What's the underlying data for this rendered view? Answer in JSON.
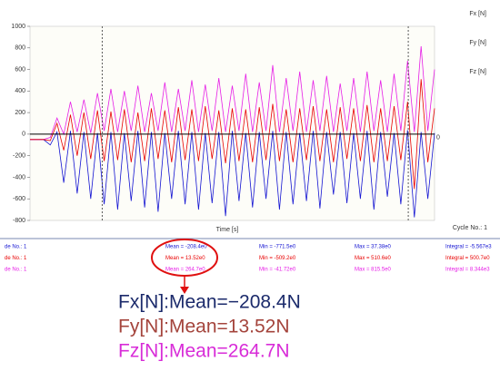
{
  "chart_data": {
    "type": "line",
    "x_label": "Time [s]",
    "x": [
      0,
      1,
      2,
      3,
      4,
      5,
      6,
      7,
      8,
      9,
      10,
      11,
      12,
      13,
      14,
      15,
      16,
      17,
      18,
      19,
      20,
      21,
      22,
      23,
      24,
      25,
      26,
      27,
      28,
      29,
      30,
      31,
      32,
      33,
      34,
      35,
      36,
      37,
      38,
      39,
      40,
      41,
      42,
      43,
      44,
      45,
      46,
      47,
      48,
      49,
      50,
      51,
      52,
      53,
      54,
      55,
      56,
      57,
      58,
      59,
      60
    ],
    "xlim": [
      0,
      60
    ],
    "ylim": [
      -800,
      1000
    ],
    "yticks": [
      1000,
      800,
      600,
      400,
      200,
      0,
      -200,
      -400,
      -600,
      -800
    ],
    "cursors": [
      10.7,
      56.1
    ],
    "annotations": [
      "0"
    ],
    "series": [
      {
        "name": "Fx [N]",
        "color": "#1414d2",
        "values": [
          -50,
          -50,
          -50,
          -100,
          20,
          -450,
          30,
          -550,
          20,
          -600,
          10,
          -650,
          20,
          -700,
          10,
          -620,
          30,
          -680,
          20,
          -720,
          10,
          -600,
          30,
          -650,
          20,
          -700,
          10,
          -640,
          20,
          -760,
          30,
          -620,
          10,
          -680,
          20,
          -600,
          30,
          -700,
          20,
          -650,
          10,
          -620,
          30,
          -690,
          20,
          -560,
          20,
          -640,
          10,
          -600,
          30,
          -700,
          20,
          -580,
          10,
          -650,
          37,
          -771,
          20,
          -600,
          10
        ]
      },
      {
        "name": "Fy [N]",
        "color": "#e80000",
        "values": [
          -50,
          -50,
          -50,
          -60,
          100,
          -150,
          180,
          -200,
          200,
          -230,
          220,
          -250,
          210,
          -240,
          230,
          -260,
          200,
          -250,
          240,
          -230,
          220,
          -260,
          250,
          -240,
          230,
          -250,
          260,
          -230,
          220,
          -270,
          240,
          -250,
          230,
          -260,
          250,
          -240,
          280,
          -250,
          230,
          -260,
          240,
          -240,
          260,
          -250,
          230,
          -260,
          250,
          -230,
          240,
          -250,
          270,
          -260,
          240,
          -250,
          260,
          -240,
          300,
          -509,
          510,
          -260,
          240
        ]
      },
      {
        "name": "Fz [N]",
        "color": "#e61ee6",
        "values": [
          -50,
          -50,
          -50,
          -30,
          150,
          0,
          300,
          20,
          320,
          10,
          380,
          30,
          420,
          20,
          400,
          30,
          450,
          20,
          380,
          30,
          480,
          20,
          420,
          30,
          500,
          20,
          460,
          30,
          520,
          20,
          450,
          30,
          560,
          20,
          480,
          30,
          640,
          20,
          520,
          30,
          580,
          20,
          500,
          30,
          540,
          20,
          470,
          30,
          520,
          20,
          580,
          30,
          500,
          20,
          560,
          30,
          680,
          20,
          815,
          30,
          600
        ]
      }
    ]
  },
  "cycle_label": "Cycle No.: 1",
  "stats_table": {
    "rows": [
      [
        "de No.: 1",
        "Mean = -208.4e0",
        "Min = -771.5e0",
        "Max = 37.38e0",
        "Integral = -5.567e3"
      ],
      [
        "de No.: 1",
        "Mean = 13.52e0",
        "Min = -509.2e0",
        "Max = 510.6e0",
        "Integral = 500.7e0"
      ],
      [
        "de No.: 1",
        "Mean = 264.7e0",
        "Min = -41.72e0",
        "Max = 815.5e0",
        "Integral = 8.344e3"
      ]
    ]
  },
  "callout": [
    "Fx[N]:Mean=−208.4N",
    "Fy[N]:Mean=13.52N",
    "Fz[N]:Mean=264.7N"
  ]
}
